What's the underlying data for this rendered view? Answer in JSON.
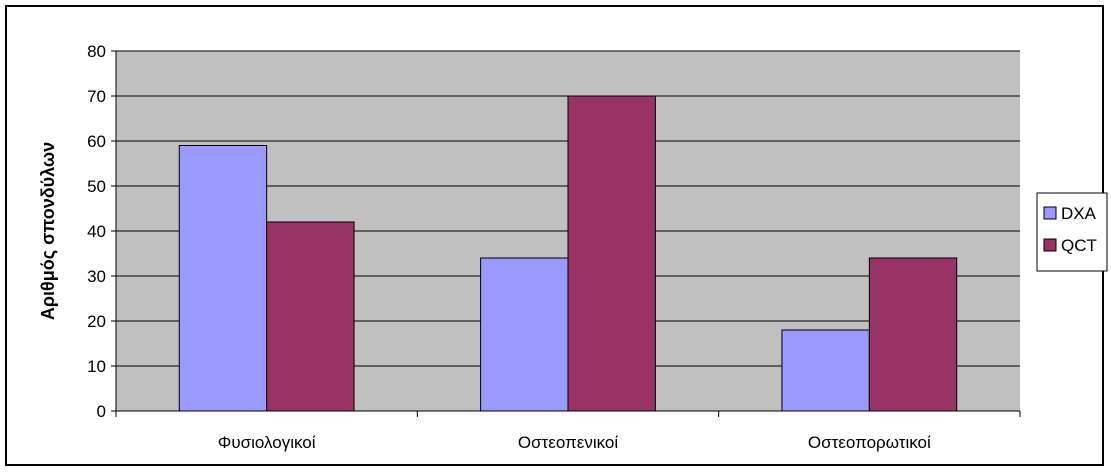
{
  "chart_data": {
    "type": "bar",
    "title": "",
    "xlabel": "",
    "ylabel": "Αριθμός σπονδύλων",
    "categories": [
      "Φυσιολογικοί",
      "Οστεοπενικοί",
      "Οστεοπορωτικοί"
    ],
    "series": [
      {
        "name": "DXA",
        "values": [
          59,
          34,
          18
        ],
        "color": "#9999ff"
      },
      {
        "name": "QCT",
        "values": [
          42,
          70,
          34
        ],
        "color": "#993366"
      }
    ],
    "ylim": [
      0,
      80
    ],
    "yticks": [
      0,
      10,
      20,
      30,
      40,
      50,
      60,
      70,
      80
    ],
    "grid": true,
    "plot_background": "#c0c0c0",
    "legend_position": "right"
  }
}
